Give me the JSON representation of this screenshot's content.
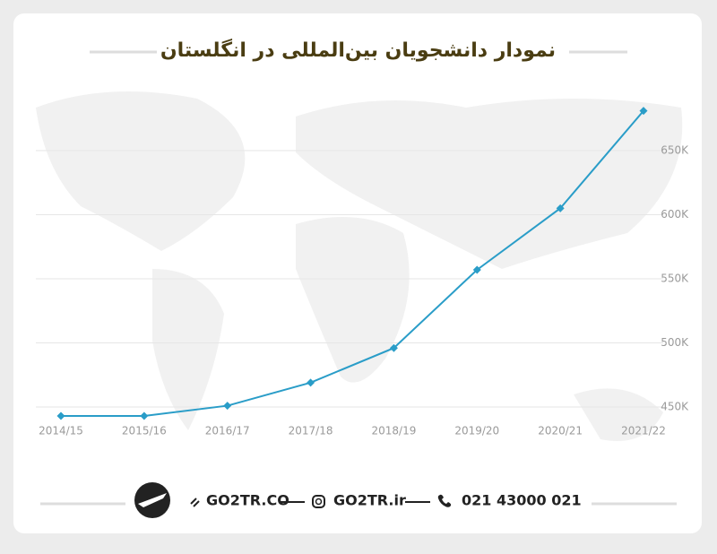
{
  "chart_data": {
    "type": "line",
    "title": "نمودار دانشجویان بین‌المللی در انگلستان",
    "categories": [
      "2014/15",
      "2015/16",
      "2016/17",
      "2017/18",
      "2018/19",
      "2019/20",
      "2020/21",
      "2021/22"
    ],
    "series": [
      {
        "color": "#2a9dc8",
        "values": [
          443,
          443,
          451,
          469,
          496,
          557,
          605,
          681
        ]
      }
    ],
    "ylim": [
      440,
      700
    ],
    "yticks": [
      {
        "value": 450,
        "label": "450K"
      },
      {
        "value": 500,
        "label": "500K"
      },
      {
        "value": 550,
        "label": "550K"
      },
      {
        "value": 600,
        "label": "600K"
      },
      {
        "value": 650,
        "label": "650K"
      }
    ],
    "grid": true
  },
  "footer": {
    "website": "GO2TR.CO",
    "instagram": "GO2TR.ir",
    "phone": "021 43000 021"
  }
}
